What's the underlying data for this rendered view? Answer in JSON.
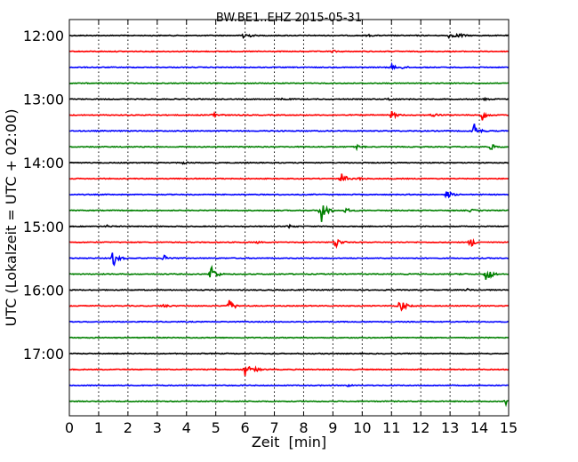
{
  "chart_data": {
    "type": "line",
    "title": "BW.BE1..EHZ 2015-05-31",
    "xlabel": "Zeit  [min]",
    "ylabel": "UTC (Lokalzeit = UTC + 02:00)",
    "xlim": [
      0,
      15
    ],
    "x_ticks": [
      "0",
      "1",
      "2",
      "3",
      "4",
      "5",
      "6",
      "7",
      "8",
      "9",
      "10",
      "11",
      "12",
      "13",
      "14",
      "15"
    ],
    "y_ticks": [
      "12:00",
      "13:00",
      "14:00",
      "15:00",
      "16:00",
      "17:00"
    ],
    "grid": "vertical dotted lines at each minute",
    "trace_colors": [
      "#000000",
      "#ff0000",
      "#0000ff",
      "#008000"
    ],
    "series": [
      {
        "start": "12:00",
        "events": [
          {
            "t": 5.95,
            "amp": 0.9
          },
          {
            "t": 10.2,
            "amp": 0.15
          },
          {
            "t": 13.0,
            "amp": 0.5
          },
          {
            "t": 13.3,
            "amp": 0.4
          }
        ]
      },
      {
        "start": "12:15",
        "events": [
          {
            "t": 9.0,
            "amp": 0.15
          }
        ]
      },
      {
        "start": "12:30",
        "events": [
          {
            "t": 11.0,
            "amp": 0.45
          },
          {
            "t": 11.4,
            "amp": 0.2
          }
        ]
      },
      {
        "start": "12:45",
        "events": []
      },
      {
        "start": "13:00",
        "events": [
          {
            "t": 7.3,
            "amp": 0.15
          },
          {
            "t": 10.9,
            "amp": 0.2
          },
          {
            "t": 14.2,
            "amp": 0.15
          }
        ]
      },
      {
        "start": "13:15",
        "events": [
          {
            "t": 4.9,
            "amp": 0.6
          },
          {
            "t": 11.0,
            "amp": 0.7
          },
          {
            "t": 12.4,
            "amp": 0.45
          },
          {
            "t": 14.1,
            "amp": 0.9
          }
        ]
      },
      {
        "start": "13:30",
        "events": [
          {
            "t": 13.8,
            "amp": 1.5
          }
        ]
      },
      {
        "start": "13:45",
        "events": [
          {
            "t": 9.8,
            "amp": 0.4
          },
          {
            "t": 14.4,
            "amp": 0.5
          }
        ]
      },
      {
        "start": "14:00",
        "events": [
          {
            "t": 3.9,
            "amp": 0.15
          }
        ]
      },
      {
        "start": "14:15",
        "events": [
          {
            "t": 9.3,
            "amp": 1.0
          },
          {
            "t": 9.9,
            "amp": 0.2
          }
        ]
      },
      {
        "start": "14:30",
        "events": [
          {
            "t": 12.9,
            "amp": 0.7
          }
        ]
      },
      {
        "start": "14:45",
        "events": [
          {
            "t": 8.6,
            "amp": 2.6
          },
          {
            "t": 9.45,
            "amp": 0.4
          },
          {
            "t": 13.7,
            "amp": 0.2
          }
        ]
      },
      {
        "start": "15:00",
        "events": [
          {
            "t": 1.3,
            "amp": 0.15
          },
          {
            "t": 7.5,
            "amp": 0.3
          }
        ]
      },
      {
        "start": "15:15",
        "events": [
          {
            "t": 9.1,
            "amp": 1.0
          },
          {
            "t": 13.7,
            "amp": 0.8
          },
          {
            "t": 6.4,
            "amp": 0.15
          }
        ]
      },
      {
        "start": "15:30",
        "events": [
          {
            "t": 1.5,
            "amp": 1.4
          },
          {
            "t": 3.25,
            "amp": 0.6
          }
        ]
      },
      {
        "start": "15:45",
        "events": [
          {
            "t": 4.85,
            "amp": 1.6
          },
          {
            "t": 14.25,
            "amp": 1.5
          },
          {
            "t": 13.4,
            "amp": 0.15
          }
        ]
      },
      {
        "start": "16:00",
        "events": [
          {
            "t": 13.6,
            "amp": 0.15
          }
        ]
      },
      {
        "start": "16:15",
        "events": [
          {
            "t": 3.2,
            "amp": 0.3
          },
          {
            "t": 5.45,
            "amp": 1.2
          },
          {
            "t": 11.3,
            "amp": 1.3
          }
        ]
      },
      {
        "start": "16:30",
        "events": []
      },
      {
        "start": "16:45",
        "events": []
      },
      {
        "start": "17:00",
        "events": []
      },
      {
        "start": "17:15",
        "events": [
          {
            "t": 6.0,
            "amp": 1.2
          },
          {
            "t": 6.4,
            "amp": 0.3
          }
        ]
      },
      {
        "start": "17:30",
        "events": [
          {
            "t": 9.5,
            "amp": 0.15
          }
        ]
      },
      {
        "start": "17:45",
        "events": [
          {
            "t": 14.9,
            "amp": 0.6
          }
        ]
      }
    ]
  }
}
